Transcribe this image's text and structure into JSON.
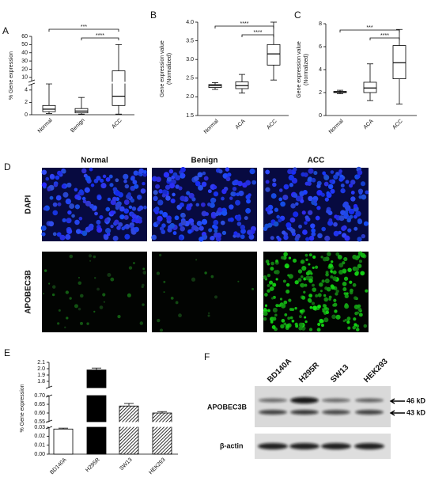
{
  "chart_data": [
    {
      "type": "box",
      "label": "A",
      "y_label": [
        "% Gene expression"
      ],
      "categories": [
        "Normal",
        "Benign",
        "ACC"
      ],
      "boxes": [
        {
          "min": 0.2,
          "q1": 0.5,
          "median": 0.9,
          "q3": 1.5,
          "max": 5
        },
        {
          "min": 0.1,
          "q1": 0.3,
          "median": 0.6,
          "q3": 1.0,
          "max": 2.8
        },
        {
          "min": 0.1,
          "q1": 1.5,
          "median": 3.0,
          "q3": 18,
          "max": 50
        }
      ],
      "y_segments": [
        {
          "ylim": [
            0,
            5
          ],
          "yticks": [
            0,
            2,
            4
          ]
        },
        {
          "ylim": [
            5,
            60
          ],
          "yticks": [
            10,
            20,
            30,
            40,
            50,
            60
          ]
        }
      ],
      "significance": [
        {
          "text": "***",
          "from": "Normal",
          "to": "ACC"
        },
        {
          "text": "****",
          "from": "Benign",
          "to": "ACC"
        }
      ]
    },
    {
      "type": "box",
      "label": "B",
      "y_label": [
        "Gene expression value",
        "(Normalized)"
      ],
      "categories": [
        "Normal",
        "ACA",
        "ACC"
      ],
      "boxes": [
        {
          "min": 2.2,
          "q1": 2.25,
          "median": 2.3,
          "q3": 2.33,
          "max": 2.38
        },
        {
          "min": 2.1,
          "q1": 2.22,
          "median": 2.3,
          "q3": 2.4,
          "max": 2.6
        },
        {
          "min": 2.45,
          "q1": 2.85,
          "median": 3.15,
          "q3": 3.4,
          "max": 4.0
        }
      ],
      "ylim": [
        1.5,
        4.0
      ],
      "yticks": [
        1.5,
        {
          "value": 2,
          "label": "2.0"
        },
        2.5,
        {
          "value": 3,
          "label": "3.0"
        },
        3.5,
        {
          "value": 4,
          "label": "4.0"
        }
      ],
      "significance": [
        {
          "text": "****",
          "from": "Normal",
          "to": "ACC"
        },
        {
          "text": "****",
          "from": "ACA",
          "to": "ACC"
        }
      ]
    },
    {
      "type": "box",
      "label": "C",
      "y_label": [
        "Gene expression value",
        "(Normalized)"
      ],
      "categories": [
        "Normal",
        "ACA",
        "ACC"
      ],
      "boxes": [
        {
          "min": 1.9,
          "q1": 2.0,
          "median": 2.05,
          "q3": 2.1,
          "max": 2.2
        },
        {
          "min": 1.3,
          "q1": 2.0,
          "median": 2.4,
          "q3": 2.9,
          "max": 4.5
        },
        {
          "min": 1.0,
          "q1": 3.2,
          "median": 4.6,
          "q3": 6.1,
          "max": 7.5
        }
      ],
      "ylim": [
        0,
        8
      ],
      "yticks": [
        0,
        2,
        4,
        6,
        8
      ],
      "significance": [
        {
          "text": "***",
          "from": "Normal",
          "to": "ACC"
        },
        {
          "text": "****",
          "from": "ACA",
          "to": "ACC"
        }
      ]
    },
    {
      "type": "bar",
      "label": "E",
      "y_label": [
        "% Gene expression"
      ],
      "categories": [
        "BD140A",
        "H295R",
        "SW13",
        "HEK293"
      ],
      "values": [
        0.028,
        1.98,
        0.64,
        0.6
      ],
      "errors": [
        0.001,
        0.03,
        0.015,
        0.008
      ],
      "bar_styles": [
        "open",
        "solid",
        "hatch",
        "hatch"
      ],
      "y_segments": [
        {
          "ylim": [
            0,
            0.03
          ],
          "yticks": [
            {
              "value": 0,
              "label": "0.00"
            },
            0.01,
            0.02,
            0.03
          ]
        },
        {
          "ylim": [
            0.55,
            0.7
          ],
          "yticks": [
            0.55,
            {
              "value": 0.6,
              "label": "0.60"
            },
            0.65,
            {
              "value": 0.7,
              "label": "0.70"
            }
          ]
        },
        {
          "ylim": [
            1.7,
            2.1
          ],
          "yticks": [
            1.8,
            1.9,
            {
              "value": 2,
              "label": "2.0"
            },
            2.1
          ]
        }
      ]
    }
  ],
  "panel_d": {
    "label": "D",
    "columns": [
      "Normal",
      "Benign",
      "ACC"
    ],
    "rows": [
      "DAPI",
      "APOBEC3B"
    ]
  },
  "panel_f": {
    "label": "F",
    "lanes": [
      "BD140A",
      "H295R",
      "SW13",
      "HEK293"
    ],
    "rows": [
      "APOBEC3B",
      "β-actin"
    ],
    "bands": [
      "46 kD",
      "43 kD"
    ]
  }
}
